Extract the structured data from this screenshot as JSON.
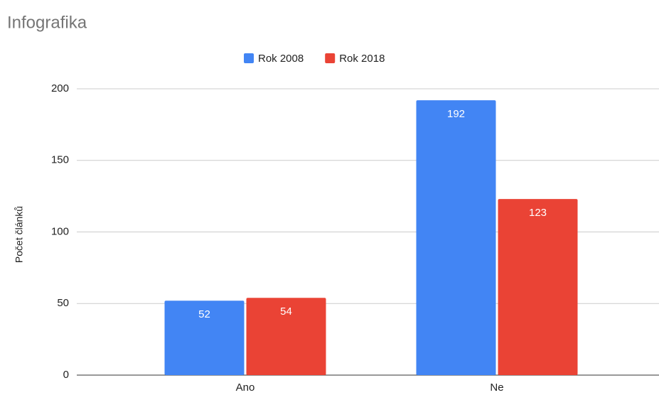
{
  "chart_data": {
    "type": "bar",
    "title": "Infografika",
    "y_label": "Počet článků",
    "categories": [
      "Ano",
      "Ne"
    ],
    "series": [
      {
        "name": "Rok 2008",
        "color": "#4285f4",
        "values": [
          52,
          192
        ]
      },
      {
        "name": "Rok 2018",
        "color": "#ea4335",
        "values": [
          54,
          123
        ]
      }
    ],
    "ylim": [
      0,
      200
    ],
    "yticks": [
      0,
      50,
      100,
      150,
      200
    ],
    "grid": true,
    "legend": "top"
  }
}
